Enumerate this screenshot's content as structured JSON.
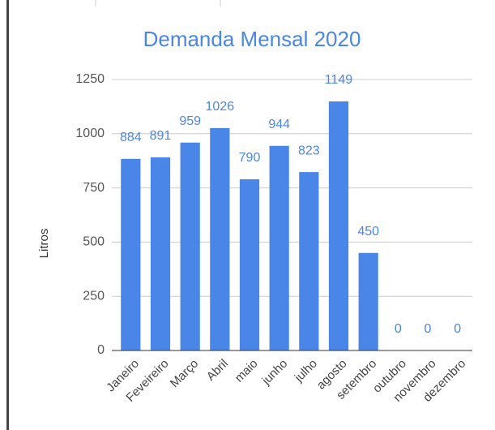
{
  "chart_data": {
    "type": "bar",
    "title": "Demanda Mensal 2020",
    "y_label": "Litros",
    "categories": [
      "Janeiro",
      "Feveireiro",
      "Março",
      "Abril",
      "maio",
      "junho",
      "julho",
      "agosto",
      "setembro",
      "outubro",
      "novembro",
      "dezembro"
    ],
    "values": [
      884,
      891,
      959,
      1026,
      790,
      944,
      823,
      1149,
      450,
      0,
      0,
      0
    ],
    "color": "#4a86e8",
    "ylim": [
      0,
      1250
    ],
    "yticks": [
      0,
      250,
      500,
      750,
      1000,
      1250
    ],
    "grid": true
  }
}
